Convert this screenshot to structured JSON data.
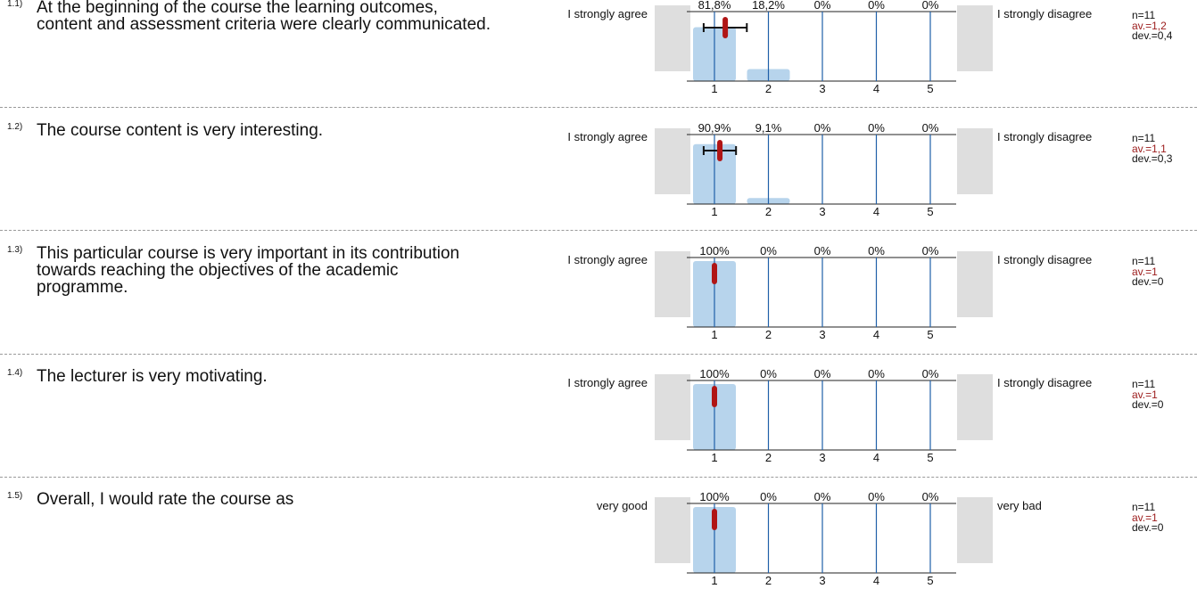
{
  "items": [
    {
      "number": "1.1)",
      "question": "At the beginning of the course the learning outcomes, content and assessment criteria were clearly communicated.",
      "left_label": "I strongly agree",
      "right_label": "I strongly disagree",
      "stats": {
        "n": "n=11",
        "av": "av.=1,2",
        "dev": "dev.=0,4"
      }
    },
    {
      "number": "1.2)",
      "question": "The course content is very interesting.",
      "left_label": "I strongly agree",
      "right_label": "I strongly disagree",
      "stats": {
        "n": "n=11",
        "av": "av.=1,1",
        "dev": "dev.=0,3"
      }
    },
    {
      "number": "1.3)",
      "question": "This particular course is very important in its contribution towards reaching the objectives of the academic programme.",
      "left_label": "I strongly agree",
      "right_label": "I strongly disagree",
      "stats": {
        "n": "n=11",
        "av": "av.=1",
        "dev": "dev.=0"
      }
    },
    {
      "number": "1.4)",
      "question": "The lecturer is very motivating.",
      "left_label": "I strongly agree",
      "right_label": "I strongly disagree",
      "stats": {
        "n": "n=11",
        "av": "av.=1",
        "dev": "dev.=0"
      }
    },
    {
      "number": "1.5)",
      "question": "Overall, I would rate the course as",
      "left_label": "very good",
      "right_label": "very bad",
      "stats": {
        "n": "n=11",
        "av": "av.=1",
        "dev": "dev.=0"
      }
    }
  ],
  "chart_data": [
    {
      "type": "bar",
      "categories": [
        "1",
        "2",
        "3",
        "4",
        "5"
      ],
      "values": [
        81.8,
        18.2,
        0,
        0,
        0
      ],
      "percent_labels": [
        "81,8%",
        "18,2%",
        "0%",
        "0%",
        "0%"
      ],
      "mean": 1.2,
      "deviation": 0.4,
      "ylim": [
        0,
        100
      ]
    },
    {
      "type": "bar",
      "categories": [
        "1",
        "2",
        "3",
        "4",
        "5"
      ],
      "values": [
        90.9,
        9.1,
        0,
        0,
        0
      ],
      "percent_labels": [
        "90,9%",
        "9,1%",
        "0%",
        "0%",
        "0%"
      ],
      "mean": 1.1,
      "deviation": 0.3,
      "ylim": [
        0,
        100
      ]
    },
    {
      "type": "bar",
      "categories": [
        "1",
        "2",
        "3",
        "4",
        "5"
      ],
      "values": [
        100,
        0,
        0,
        0,
        0
      ],
      "percent_labels": [
        "100%",
        "0%",
        "0%",
        "0%",
        "0%"
      ],
      "mean": 1,
      "deviation": 0,
      "ylim": [
        0,
        100
      ]
    },
    {
      "type": "bar",
      "categories": [
        "1",
        "2",
        "3",
        "4",
        "5"
      ],
      "values": [
        100,
        0,
        0,
        0,
        0
      ],
      "percent_labels": [
        "100%",
        "0%",
        "0%",
        "0%",
        "0%"
      ],
      "mean": 1,
      "deviation": 0,
      "ylim": [
        0,
        100
      ]
    },
    {
      "type": "bar",
      "categories": [
        "1",
        "2",
        "3",
        "4",
        "5"
      ],
      "values": [
        100,
        0,
        0,
        0,
        0
      ],
      "percent_labels": [
        "100%",
        "0%",
        "0%",
        "0%",
        "0%"
      ],
      "mean": 1,
      "deviation": 0,
      "ylim": [
        0,
        100
      ]
    }
  ],
  "colors": {
    "bar": "#b7d4ec",
    "gridline": "#1f5fa8",
    "mean_marker": "#b01515",
    "side_box": "#dedede",
    "av_text": "#9b1b1b"
  }
}
